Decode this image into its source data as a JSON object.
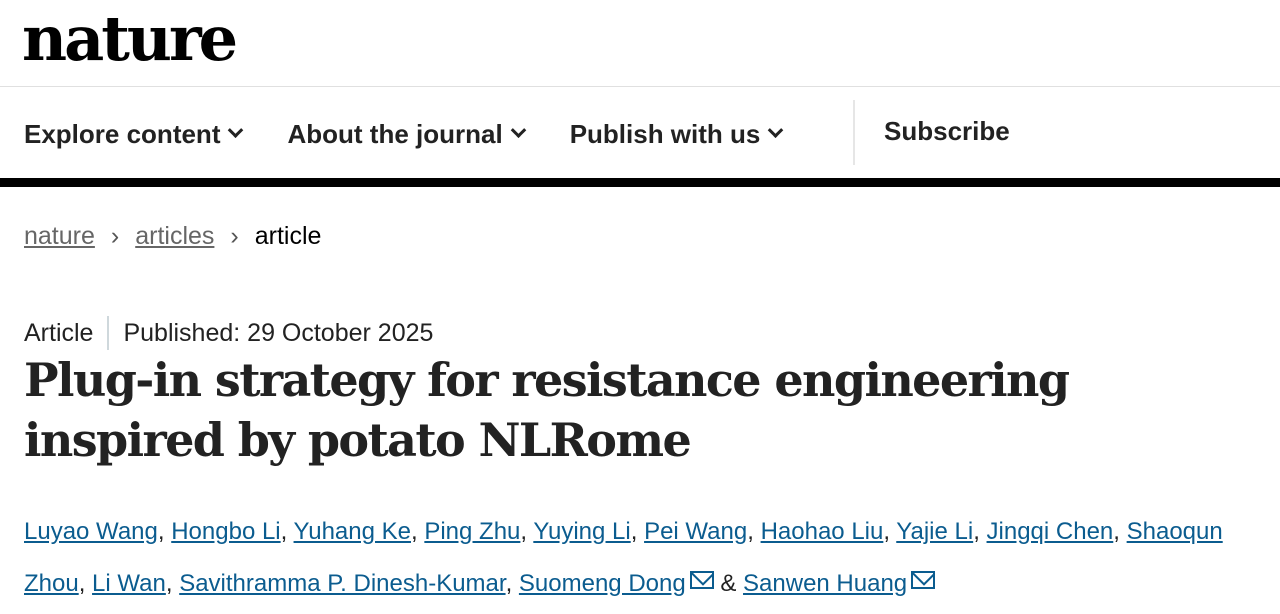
{
  "site": {
    "logo": "nature"
  },
  "nav": {
    "items": [
      "Explore content",
      "About the journal",
      "Publish with us"
    ],
    "subscribe": "Subscribe"
  },
  "breadcrumb": {
    "items": [
      "nature",
      "articles",
      "article"
    ]
  },
  "article": {
    "type": "Article",
    "published": "Published: 29 October 2025",
    "title": "Plug-in strategy for resistance engineering inspired by potato NLRome",
    "authors": [
      "Luyao Wang",
      "Hongbo Li",
      "Yuhang Ke",
      "Ping Zhu",
      "Yuying Li",
      "Pei Wang",
      "Haohao Liu",
      "Yajie Li",
      "Jingqi Chen",
      "Shaoqun Zhou",
      "Li Wan",
      "Savithramma P. Dinesh-Kumar",
      "Suomeng Dong",
      "Sanwen Huang"
    ],
    "separator_comma": ",",
    "separator_and": "&"
  },
  "colors": {
    "link": "#0b5c8f",
    "bar": "#000000"
  }
}
